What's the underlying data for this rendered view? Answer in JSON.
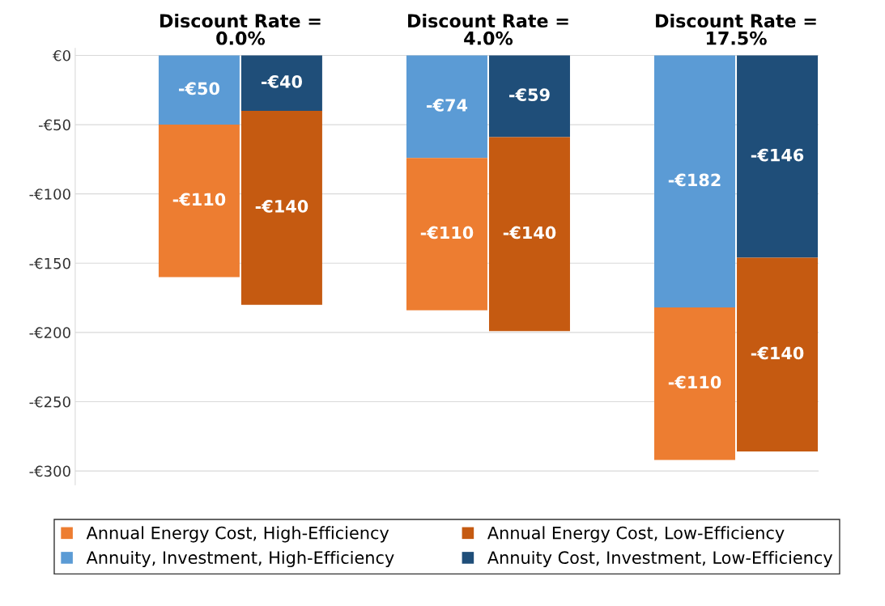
{
  "chart_data": {
    "type": "bar",
    "stacked": true,
    "categories": [
      null,
      null,
      null,
      null,
      null,
      null
    ],
    "annotations": [
      "Discount Rate =\n0.0%",
      "Discount Rate =\n4.0%",
      "Discount Rate =\n17.5%"
    ],
    "series": [
      {
        "name": "Annuity, Investment, High-Efficiency",
        "color": "#5b9bd5",
        "values": [
          -50,
          null,
          -74,
          null,
          -182,
          null
        ],
        "value_labels": [
          "-€50",
          null,
          "-€74",
          null,
          "-€182",
          null
        ]
      },
      {
        "name": "Annual Energy Cost, High-Efficiency",
        "color": "#ed7d31",
        "values": [
          -110,
          null,
          -110,
          null,
          -110,
          null
        ],
        "value_labels": [
          "-€110",
          null,
          "-€110",
          null,
          "-€110",
          null
        ]
      },
      {
        "name": "Annuity Cost, Investment, Low-Efficiency",
        "color": "#1f4e79",
        "values": [
          null,
          -40,
          null,
          -59,
          null,
          -146
        ],
        "value_labels": [
          null,
          "-€40",
          null,
          "-€59",
          null,
          "-€146"
        ]
      },
      {
        "name": "Annual Energy Cost, Low-Efficiency",
        "color": "#c55a11",
        "values": [
          null,
          -140,
          null,
          -140,
          null,
          -140
        ],
        "value_labels": [
          null,
          "-€140",
          null,
          "-€140",
          null,
          "-€140"
        ]
      }
    ],
    "ylim": [
      -310,
      5
    ],
    "yticks": [
      {
        "value": 0,
        "label": "€0"
      },
      {
        "value": -50,
        "label": "-€50"
      },
      {
        "value": -100,
        "label": "-€100"
      },
      {
        "value": -150,
        "label": "-€150"
      },
      {
        "value": -200,
        "label": "-€200"
      },
      {
        "value": -250,
        "label": "-€250"
      },
      {
        "value": -300,
        "label": "-€300"
      }
    ],
    "grid": "y",
    "legend": "bottom"
  }
}
